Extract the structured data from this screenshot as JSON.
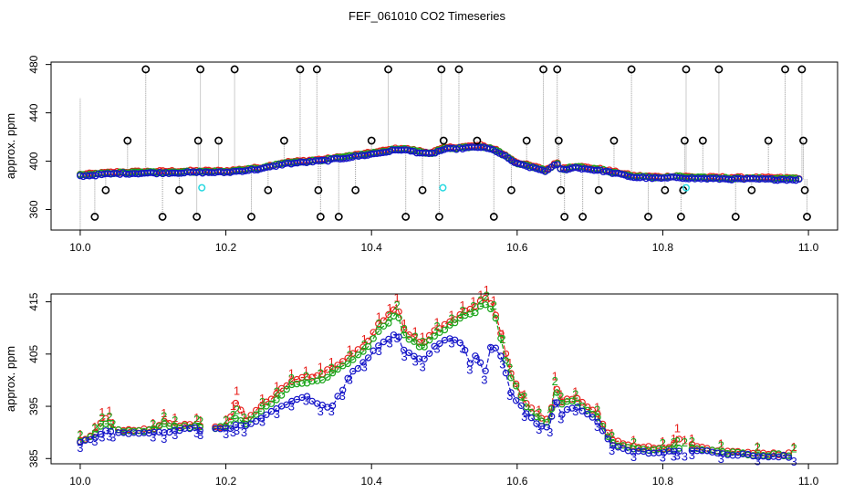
{
  "figure": {
    "title": "FEF_061010  CO2 Timeseries"
  },
  "colors": {
    "series1": "#e8201c",
    "series2": "#1aa51a",
    "series3": "#1414c8",
    "outlier": "#000000",
    "flag": "#28d8e0",
    "spike": "#9a9a9a"
  },
  "chart_data": [
    {
      "type": "scatter",
      "title": "FEF_061010  CO2 Timeseries",
      "xlabel": "",
      "ylabel": "approx. ppm",
      "xlim": [
        9.96,
        11.04
      ],
      "ylim": [
        343,
        482
      ],
      "xticks": [
        "10.0",
        "10.2",
        "10.4",
        "10.6",
        "10.8",
        "11.0"
      ],
      "yticks": [
        "360",
        "400",
        "440",
        "480"
      ],
      "legend": "none",
      "baseline_series": [
        "series1",
        "series2",
        "series3"
      ],
      "baseline_knots": [
        [
          10.0,
          388
        ],
        [
          10.05,
          390
        ],
        [
          10.1,
          390.5
        ],
        [
          10.16,
          391
        ],
        [
          10.2,
          391
        ],
        [
          10.25,
          394
        ],
        [
          10.28,
          398
        ],
        [
          10.32,
          400
        ],
        [
          10.34,
          401
        ],
        [
          10.4,
          406
        ],
        [
          10.44,
          410
        ],
        [
          10.48,
          406
        ],
        [
          10.5,
          410
        ],
        [
          10.55,
          412
        ],
        [
          10.57,
          409
        ],
        [
          10.6,
          398
        ],
        [
          10.64,
          392
        ],
        [
          10.655,
          398
        ],
        [
          10.66,
          393
        ],
        [
          10.68,
          395
        ],
        [
          10.72,
          392
        ],
        [
          10.76,
          387
        ],
        [
          10.8,
          386
        ],
        [
          10.82,
          387
        ],
        [
          10.84,
          386
        ],
        [
          10.9,
          385.5
        ],
        [
          10.99,
          385
        ]
      ],
      "outlier_spikes": [
        {
          "x": 10.02,
          "y": 354
        },
        {
          "x": 10.035,
          "y": 376
        },
        {
          "x": 10.065,
          "y": 417
        },
        {
          "x": 10.09,
          "y": 476
        },
        {
          "x": 10.113,
          "y": 354
        },
        {
          "x": 10.136,
          "y": 376
        },
        {
          "x": 10.16,
          "y": 354
        },
        {
          "x": 10.162,
          "y": 417
        },
        {
          "x": 10.165,
          "y": 476
        },
        {
          "x": 10.19,
          "y": 417
        },
        {
          "x": 10.212,
          "y": 476
        },
        {
          "x": 10.235,
          "y": 354
        },
        {
          "x": 10.258,
          "y": 376
        },
        {
          "x": 10.28,
          "y": 417
        },
        {
          "x": 10.302,
          "y": 476
        },
        {
          "x": 10.325,
          "y": 476
        },
        {
          "x": 10.327,
          "y": 376
        },
        {
          "x": 10.33,
          "y": 354
        },
        {
          "x": 10.355,
          "y": 354
        },
        {
          "x": 10.378,
          "y": 376
        },
        {
          "x": 10.4,
          "y": 417
        },
        {
          "x": 10.423,
          "y": 476
        },
        {
          "x": 10.447,
          "y": 354
        },
        {
          "x": 10.47,
          "y": 376
        },
        {
          "x": 10.493,
          "y": 354
        },
        {
          "x": 10.496,
          "y": 476
        },
        {
          "x": 10.499,
          "y": 417
        },
        {
          "x": 10.52,
          "y": 476
        },
        {
          "x": 10.545,
          "y": 417
        },
        {
          "x": 10.568,
          "y": 354
        },
        {
          "x": 10.592,
          "y": 376
        },
        {
          "x": 10.613,
          "y": 417
        },
        {
          "x": 10.636,
          "y": 476
        },
        {
          "x": 10.655,
          "y": 476
        },
        {
          "x": 10.657,
          "y": 417
        },
        {
          "x": 10.66,
          "y": 376
        },
        {
          "x": 10.665,
          "y": 354
        },
        {
          "x": 10.69,
          "y": 354
        },
        {
          "x": 10.712,
          "y": 376
        },
        {
          "x": 10.733,
          "y": 417
        },
        {
          "x": 10.757,
          "y": 476
        },
        {
          "x": 10.78,
          "y": 354
        },
        {
          "x": 10.803,
          "y": 376
        },
        {
          "x": 10.825,
          "y": 354
        },
        {
          "x": 10.828,
          "y": 376
        },
        {
          "x": 10.83,
          "y": 417
        },
        {
          "x": 10.832,
          "y": 476
        },
        {
          "x": 10.855,
          "y": 417
        },
        {
          "x": 10.877,
          "y": 476
        },
        {
          "x": 10.9,
          "y": 354
        },
        {
          "x": 10.922,
          "y": 376
        },
        {
          "x": 10.945,
          "y": 417
        },
        {
          "x": 10.968,
          "y": 476
        },
        {
          "x": 10.991,
          "y": 476
        },
        {
          "x": 10.993,
          "y": 417
        },
        {
          "x": 10.995,
          "y": 376
        },
        {
          "x": 10.998,
          "y": 354
        }
      ],
      "flags": [
        {
          "x": 10.167,
          "y": 378
        },
        {
          "x": 10.498,
          "y": 378
        },
        {
          "x": 10.832,
          "y": 378
        }
      ]
    },
    {
      "type": "line",
      "xlabel": "",
      "ylabel": "approx. ppm",
      "xlim": [
        9.96,
        11.04
      ],
      "ylim": [
        384,
        416.5
      ],
      "xticks": [
        "10.0",
        "10.2",
        "10.4",
        "10.6",
        "10.8",
        "11.0"
      ],
      "yticks": [
        "385",
        "395",
        "405",
        "415"
      ],
      "legend": "none",
      "series": [
        {
          "name": "1",
          "color_key": "series1",
          "points": [
            [
              10.0,
              388.4
            ],
            [
              10.02,
              389.8
            ],
            [
              10.03,
              392.6
            ],
            [
              10.04,
              392.8
            ],
            [
              10.045,
              390.5
            ],
            [
              10.1,
              390.5
            ],
            [
              10.115,
              392.4
            ],
            [
              10.13,
              391.5
            ],
            [
              10.16,
              391.5
            ],
            [
              10.165,
              391.0
            ],
            [
              10.2,
              391.2
            ],
            [
              10.21,
              393.8
            ],
            [
              10.215,
              396.7
            ],
            [
              10.225,
              392.0
            ],
            [
              10.25,
              395.2
            ],
            [
              10.27,
              397.5
            ],
            [
              10.29,
              400.0
            ],
            [
              10.31,
              400.5
            ],
            [
              10.33,
              401.2
            ],
            [
              10.345,
              402.2
            ],
            [
              10.37,
              404.5
            ],
            [
              10.39,
              406.5
            ],
            [
              10.41,
              410.8
            ],
            [
              10.425,
              412.5
            ],
            [
              10.435,
              414.5
            ],
            [
              10.445,
              409.5
            ],
            [
              10.46,
              408.0
            ],
            [
              10.47,
              407.0
            ],
            [
              10.49,
              409.8
            ],
            [
              10.51,
              411.2
            ],
            [
              10.525,
              413.0
            ],
            [
              10.54,
              413.8
            ],
            [
              10.55,
              415.0
            ],
            [
              10.558,
              416.0
            ],
            [
              10.568,
              414.0
            ],
            [
              10.58,
              407.5
            ],
            [
              10.59,
              402.0
            ],
            [
              10.61,
              396.0
            ],
            [
              10.63,
              393.0
            ],
            [
              10.645,
              392.5
            ],
            [
              10.652,
              399.5
            ],
            [
              10.66,
              396.0
            ],
            [
              10.68,
              396.5
            ],
            [
              10.71,
              393.5
            ],
            [
              10.73,
              388.5
            ],
            [
              10.76,
              387.2
            ],
            [
              10.8,
              387.0
            ],
            [
              10.815,
              387.5
            ],
            [
              10.82,
              389.5
            ],
            [
              10.83,
              387.2
            ],
            [
              10.84,
              387.5
            ],
            [
              10.88,
              386.5
            ],
            [
              10.93,
              386.0
            ],
            [
              10.98,
              385.9
            ]
          ]
        },
        {
          "name": "2",
          "color_key": "series2",
          "points": [
            [
              10.0,
              388.2
            ],
            [
              10.02,
              389.5
            ],
            [
              10.03,
              391.5
            ],
            [
              10.04,
              391.7
            ],
            [
              10.045,
              390.3
            ],
            [
              10.1,
              390.3
            ],
            [
              10.115,
              391.8
            ],
            [
              10.13,
              391.0
            ],
            [
              10.16,
              391.2
            ],
            [
              10.165,
              390.8
            ],
            [
              10.2,
              391.0
            ],
            [
              10.21,
              392.0
            ],
            [
              10.215,
              393.0
            ],
            [
              10.225,
              391.5
            ],
            [
              10.25,
              394.5
            ],
            [
              10.27,
              396.5
            ],
            [
              10.29,
              399.0
            ],
            [
              10.31,
              399.5
            ],
            [
              10.33,
              400.0
            ],
            [
              10.345,
              401.0
            ],
            [
              10.37,
              403.5
            ],
            [
              10.39,
              405.5
            ],
            [
              10.41,
              409.5
            ],
            [
              10.425,
              411.0
            ],
            [
              10.435,
              413.0
            ],
            [
              10.445,
              408.5
            ],
            [
              10.46,
              407.0
            ],
            [
              10.47,
              406.0
            ],
            [
              10.49,
              409.0
            ],
            [
              10.51,
              410.5
            ],
            [
              10.525,
              412.0
            ],
            [
              10.54,
              412.8
            ],
            [
              10.55,
              414.0
            ],
            [
              10.558,
              414.8
            ],
            [
              10.568,
              413.0
            ],
            [
              10.58,
              406.5
            ],
            [
              10.59,
              401.0
            ],
            [
              10.61,
              395.5
            ],
            [
              10.63,
              392.5
            ],
            [
              10.645,
              392.0
            ],
            [
              10.652,
              398.5
            ],
            [
              10.66,
              395.5
            ],
            [
              10.68,
              396.0
            ],
            [
              10.71,
              393.0
            ],
            [
              10.73,
              388.0
            ],
            [
              10.76,
              386.8
            ],
            [
              10.8,
              386.6
            ],
            [
              10.815,
              386.8
            ],
            [
              10.82,
              387.0
            ],
            [
              10.83,
              386.8
            ],
            [
              10.84,
              387.0
            ],
            [
              10.88,
              386.2
            ],
            [
              10.93,
              385.8
            ],
            [
              10.98,
              385.7
            ]
          ]
        },
        {
          "name": "3",
          "color_key": "series3",
          "points": [
            [
              10.0,
              388.0
            ],
            [
              10.02,
              389.2
            ],
            [
              10.03,
              390.0
            ],
            [
              10.04,
              390.2
            ],
            [
              10.045,
              390.0
            ],
            [
              10.1,
              390.0
            ],
            [
              10.115,
              389.8
            ],
            [
              10.13,
              390.5
            ],
            [
              10.16,
              390.8
            ],
            [
              10.165,
              390.5
            ],
            [
              10.2,
              390.6
            ],
            [
              10.21,
              391.0
            ],
            [
              10.215,
              391.3
            ],
            [
              10.225,
              391.0
            ],
            [
              10.25,
              393.0
            ],
            [
              10.27,
              394.5
            ],
            [
              10.29,
              396.0
            ],
            [
              10.31,
              397.0
            ],
            [
              10.33,
              395.0
            ],
            [
              10.345,
              395.0
            ],
            [
              10.36,
              398.0
            ],
            [
              10.37,
              401.0
            ],
            [
              10.39,
              403.5
            ],
            [
              10.41,
              406.5
            ],
            [
              10.425,
              408.0
            ],
            [
              10.435,
              409.0
            ],
            [
              10.445,
              405.5
            ],
            [
              10.46,
              404.5
            ],
            [
              10.47,
              403.5
            ],
            [
              10.49,
              407.0
            ],
            [
              10.51,
              408.0
            ],
            [
              10.525,
              407.0
            ],
            [
              10.535,
              403.0
            ],
            [
              10.545,
              405.0
            ],
            [
              10.555,
              401.0
            ],
            [
              10.565,
              407.0
            ],
            [
              10.58,
              404.0
            ],
            [
              10.59,
              398.0
            ],
            [
              10.61,
              394.0
            ],
            [
              10.63,
              391.5
            ],
            [
              10.645,
              391.0
            ],
            [
              10.652,
              396.5
            ],
            [
              10.66,
              393.5
            ],
            [
              10.68,
              395.0
            ],
            [
              10.71,
              392.0
            ],
            [
              10.73,
              387.5
            ],
            [
              10.76,
              386.3
            ],
            [
              10.8,
              386.2
            ],
            [
              10.815,
              386.4
            ],
            [
              10.82,
              386.5
            ],
            [
              10.83,
              386.4
            ],
            [
              10.84,
              386.6
            ],
            [
              10.88,
              385.9
            ],
            [
              10.93,
              385.5
            ],
            [
              10.98,
              385.4
            ]
          ]
        }
      ]
    }
  ]
}
